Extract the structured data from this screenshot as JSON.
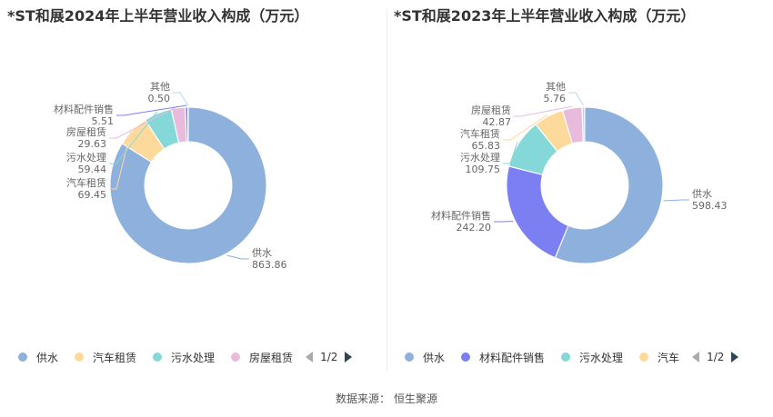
{
  "source": {
    "label": "数据来源：",
    "value": "恒生聚源"
  },
  "pager_left": "1/2",
  "pager_right": "1/2",
  "chart_data": [
    {
      "type": "pie",
      "title": "*ST和展2024年上半年营业收入构成（万元）",
      "slices": [
        {
          "name": "供水",
          "value": 863.86,
          "display": "863.86",
          "color": "#8eb0dd"
        },
        {
          "name": "汽车租赁",
          "value": 69.45,
          "display": "69.45",
          "color": "#fdd99b"
        },
        {
          "name": "污水处理",
          "value": 59.44,
          "display": "59.44",
          "color": "#84d8d8"
        },
        {
          "name": "房屋租赁",
          "value": 29.63,
          "display": "29.63",
          "color": "#e8bbdd"
        },
        {
          "name": "材料配件销售",
          "value": 5.51,
          "display": "5.51",
          "color": "#7b7ff2"
        },
        {
          "name": "其他",
          "value": 0.5,
          "display": "0.50",
          "color": "#b4d8f2"
        }
      ],
      "legend_visible": [
        "供水",
        "汽车租赁",
        "污水处理",
        "房屋租赁"
      ],
      "legend_position": "bottom"
    },
    {
      "type": "pie",
      "title": "*ST和展2023年上半年营业收入构成（万元）",
      "slices": [
        {
          "name": "供水",
          "value": 598.43,
          "display": "598.43",
          "color": "#8eb0dd"
        },
        {
          "name": "材料配件销售",
          "value": 242.2,
          "display": "242.20",
          "color": "#7b7ff2"
        },
        {
          "name": "污水处理",
          "value": 109.75,
          "display": "109.75",
          "color": "#84d8d8"
        },
        {
          "name": "汽车租赁",
          "value": 65.83,
          "display": "65.83",
          "color": "#fdd99b"
        },
        {
          "name": "房屋租赁",
          "value": 42.87,
          "display": "42.87",
          "color": "#e8bbdd"
        },
        {
          "name": "其他",
          "value": 5.76,
          "display": "5.76",
          "color": "#b4d8f2"
        }
      ],
      "legend_visible": [
        "供水",
        "材料配件销售",
        "污水处理",
        "汽车"
      ],
      "legend_position": "bottom"
    }
  ]
}
